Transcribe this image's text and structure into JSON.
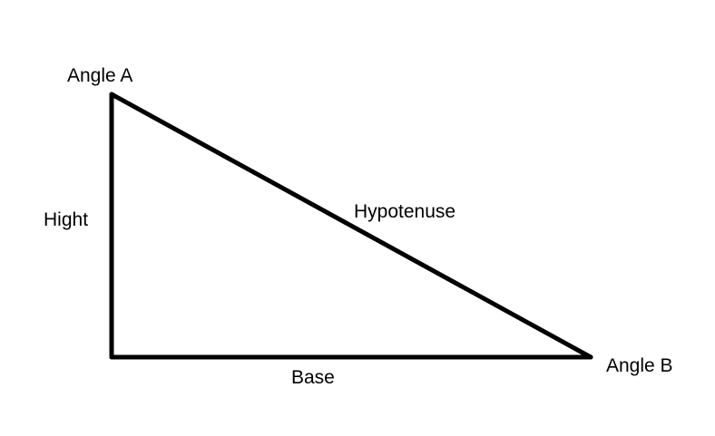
{
  "diagram": {
    "labels": {
      "angle_a": "Angle A",
      "angle_b": "Angle B",
      "height": "Hight",
      "hypotenuse": "Hypotenuse",
      "base": "Base"
    },
    "stroke_color": "#000000",
    "background_color": "#ffffff"
  }
}
